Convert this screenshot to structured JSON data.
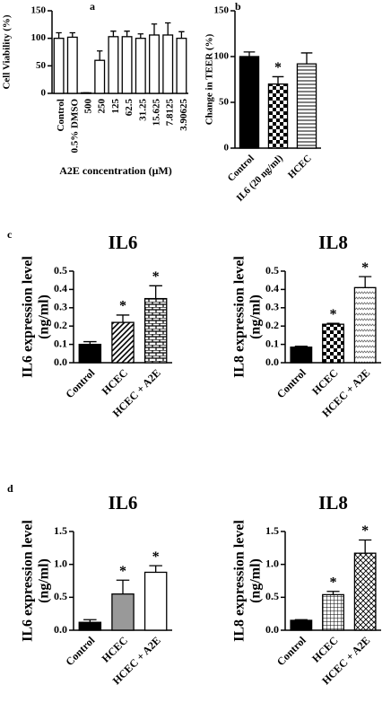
{
  "chart_data": [
    {
      "type": "bar",
      "panel_label": "a",
      "ylabel": [
        "Cell Viability (%)"
      ],
      "xlabel": "A2E concentration (μM)",
      "categories": [
        "Control",
        "0.5% DMSO",
        "500",
        "250",
        "125",
        "62.5",
        "31.25",
        "15.625",
        "7.8125",
        "3.90625"
      ],
      "values": [
        100,
        102,
        1,
        60,
        103,
        103,
        100,
        106,
        106,
        100
      ],
      "errors": [
        10,
        8,
        0,
        17,
        10,
        10,
        8,
        20,
        22,
        12
      ],
      "bar_styles": [
        "white",
        "white",
        "white",
        "white",
        "white",
        "white",
        "white",
        "white",
        "white",
        "white"
      ],
      "label_rotation": "vertical",
      "ylim": [
        0,
        150
      ],
      "yticks": [
        0,
        50,
        100,
        150
      ]
    },
    {
      "type": "bar",
      "panel_label": "b",
      "ylabel": [
        "Change in TEER (%)"
      ],
      "categories": [
        "Control",
        "IL6 (20 ng/ml)",
        "HCEC"
      ],
      "values": [
        100,
        70,
        92
      ],
      "errors": [
        5,
        8,
        12
      ],
      "significance": [
        null,
        "*",
        null
      ],
      "bar_styles": [
        "black",
        "checker",
        "hlines"
      ],
      "label_rotation": "diagonal",
      "ylim": [
        0,
        150
      ],
      "yticks": [
        0,
        50,
        100,
        150
      ]
    },
    {
      "type": "bar",
      "panel_label": "c",
      "title": "IL6",
      "ylabel": [
        "IL6 expression level",
        "(ng/ml)"
      ],
      "categories": [
        "Control",
        "HCEC",
        "HCEC + A2E"
      ],
      "values": [
        0.1,
        0.22,
        0.35
      ],
      "errors": [
        0.015,
        0.04,
        0.07
      ],
      "significance": [
        null,
        "*",
        "*"
      ],
      "bar_styles": [
        "black",
        "diag",
        "bricks"
      ],
      "label_rotation": "diagonal",
      "ylim": [
        0,
        0.5
      ],
      "yticks": [
        {
          "value": 0,
          "label": "0.0"
        },
        0.1,
        0.2,
        0.3,
        0.4,
        0.5
      ]
    },
    {
      "type": "bar",
      "title": "IL8",
      "ylabel": [
        "IL8 expression level",
        "(ng/ml)"
      ],
      "categories": [
        "Control",
        "HCEC",
        "HCEC + A2E"
      ],
      "values": [
        0.085,
        0.21,
        0.41
      ],
      "errors": [
        0.005,
        0.005,
        0.06
      ],
      "significance": [
        null,
        "*",
        "*"
      ],
      "bar_styles": [
        "black",
        "checker",
        "zigzag"
      ],
      "label_rotation": "diagonal",
      "ylim": [
        0,
        0.5
      ],
      "yticks": [
        {
          "value": 0,
          "label": "0.0"
        },
        0.1,
        0.2,
        0.3,
        0.4,
        0.5
      ]
    },
    {
      "type": "bar",
      "panel_label": "d",
      "title": "IL6",
      "ylabel": [
        "IL6 expression level",
        "(ng/ml)"
      ],
      "categories": [
        "Control",
        "HCEC",
        "HCEC + A2E"
      ],
      "values": [
        0.12,
        0.55,
        0.88
      ],
      "errors": [
        0.04,
        0.21,
        0.1
      ],
      "significance": [
        null,
        "*",
        "*"
      ],
      "bar_styles": [
        "black",
        "gray",
        "white"
      ],
      "label_rotation": "diagonal",
      "ylim": [
        0,
        1.5
      ],
      "yticks": [
        {
          "value": 0,
          "label": "0.0"
        },
        0.5,
        {
          "value": 1,
          "label": "1.0"
        },
        1.5
      ]
    },
    {
      "type": "bar",
      "title": "IL8",
      "ylabel": [
        "IL8 expression level",
        "(ng/ml)"
      ],
      "categories": [
        "Control",
        "HCEC",
        "HCEC + A2E"
      ],
      "values": [
        0.15,
        0.54,
        1.17
      ],
      "errors": [
        0.01,
        0.05,
        0.2
      ],
      "significance": [
        null,
        "*",
        "*"
      ],
      "bar_styles": [
        "black",
        "grid",
        "cross"
      ],
      "label_rotation": "diagonal",
      "ylim": [
        0,
        1.5
      ],
      "yticks": [
        {
          "value": 0,
          "label": "0.0"
        },
        0.5,
        {
          "value": 1,
          "label": "1.0"
        },
        1.5
      ]
    }
  ]
}
